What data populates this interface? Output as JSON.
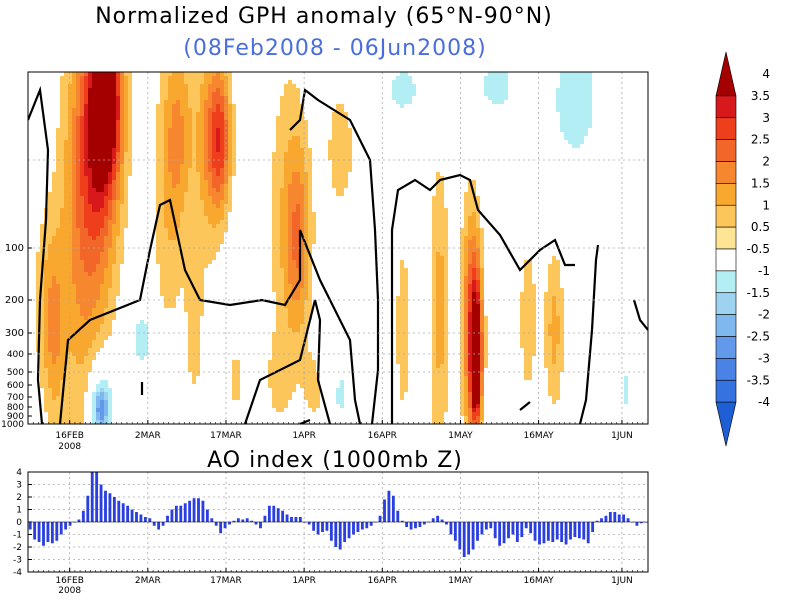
{
  "chart_data": [
    {
      "type": "heatmap",
      "title": "Normalized GPH anomaly (65°N-90°N)",
      "subtitle": "(08Feb2008 - 06Jun2008)",
      "x_ticks": [
        {
          "label": "16FEB",
          "sub": "2008",
          "day": 8
        },
        {
          "label": "2MAR",
          "sub": "",
          "day": 23
        },
        {
          "label": "17MAR",
          "sub": "",
          "day": 38
        },
        {
          "label": "1APR",
          "sub": "",
          "day": 53
        },
        {
          "label": "16APR",
          "sub": "",
          "day": 68
        },
        {
          "label": "1MAY",
          "sub": "",
          "day": 83
        },
        {
          "label": "16MAY",
          "sub": "",
          "day": 98
        },
        {
          "label": "1JUN",
          "sub": "",
          "day": 114
        }
      ],
      "xlim_days": [
        0,
        119
      ],
      "y_ticks": [
        "100",
        "200",
        "300",
        "400",
        "500",
        "600",
        "700",
        "800",
        "900",
        "1000"
      ],
      "colorbar": {
        "labels": [
          "4",
          "3.5",
          "3",
          "2.5",
          "2",
          "1.5",
          "1",
          "0.5",
          "-0.5",
          "-1",
          "-1.5",
          "-2",
          "-2.5",
          "-3",
          "-3.5",
          "-4"
        ],
        "levels": [
          4,
          3.5,
          3,
          2.5,
          2,
          1.5,
          1,
          0.5,
          -0.5,
          -1,
          -1.5,
          -2,
          -2.5,
          -3,
          -3.5,
          -4
        ],
        "colors": [
          "#a40000",
          "#d7191c",
          "#ee3e1b",
          "#f3662a",
          "#f7872f",
          "#f9a82f",
          "#fcc65a",
          "#fde595",
          "#ffffff",
          "#b4eef5",
          "#9dd3f0",
          "#7fb7ef",
          "#6399eb",
          "#4a82e6",
          "#3574e0",
          "#1f5fd6"
        ]
      }
    },
    {
      "type": "bar",
      "title": "AO index (1000mb Z)",
      "ylim": [
        -4,
        4
      ],
      "y_ticks": [
        "4",
        "3",
        "2",
        "1",
        "0",
        "-1",
        "-2",
        "-3",
        "-4"
      ],
      "x_ticks": [
        "16FEB",
        "2MAR",
        "17MAR",
        "1APR",
        "16APR",
        "1MAY",
        "16MAY",
        "1JUN"
      ],
      "x_sub": "2008",
      "bar_color": "#2a3fe0",
      "values": [
        -0.6,
        -1.4,
        -1.6,
        -1.9,
        -1.6,
        -1.7,
        -1.5,
        -1.0,
        -0.6,
        -0.3,
        0.0,
        0.2,
        0.9,
        2.1,
        4.0,
        4.0,
        3.0,
        2.5,
        2.3,
        2.0,
        1.7,
        1.5,
        1.3,
        1.0,
        0.8,
        0.6,
        0.4,
        0.3,
        -0.3,
        -0.6,
        -0.3,
        0.5,
        1.0,
        1.3,
        1.3,
        1.5,
        1.7,
        1.9,
        1.9,
        1.7,
        1.0,
        0.3,
        -0.3,
        -0.9,
        -0.5,
        -0.2,
        0.1,
        0.3,
        0.2,
        0.3,
        0.1,
        -0.2,
        -0.5,
        0.5,
        1.3,
        1.3,
        1.1,
        0.9,
        0.6,
        0.4,
        0.4,
        0.4,
        0.0,
        -0.2,
        -0.7,
        -1.0,
        -0.8,
        -0.7,
        -1.5,
        -2.0,
        -2.2,
        -1.6,
        -1.3,
        -1.0,
        -0.8,
        -0.6,
        -0.5,
        -0.3,
        0.0,
        0.5,
        1.8,
        2.5,
        2.1,
        0.9,
        0.1,
        -0.4,
        -0.6,
        -0.5,
        -0.4,
        -0.2,
        0.0,
        0.3,
        0.5,
        0.2,
        -0.2,
        -1.0,
        -1.5,
        -2.2,
        -2.8,
        -2.6,
        -2.2,
        -1.5,
        -1.0,
        -0.6,
        -0.5,
        -1.3,
        -1.9,
        -1.7,
        -1.3,
        -1.0,
        -1.6,
        -1.2,
        -0.5,
        -0.9,
        -1.5,
        -1.8,
        -1.7,
        -1.5,
        -1.6,
        -1.4,
        -1.6,
        -1.8,
        -1.4,
        -1.2,
        -1.3,
        -1.4,
        -1.7,
        -0.8,
        0.1,
        0.3,
        0.5,
        0.8,
        0.8,
        0.6,
        0.6,
        0.3,
        0.0,
        -0.3,
        -0.1,
        0.0
      ]
    }
  ]
}
